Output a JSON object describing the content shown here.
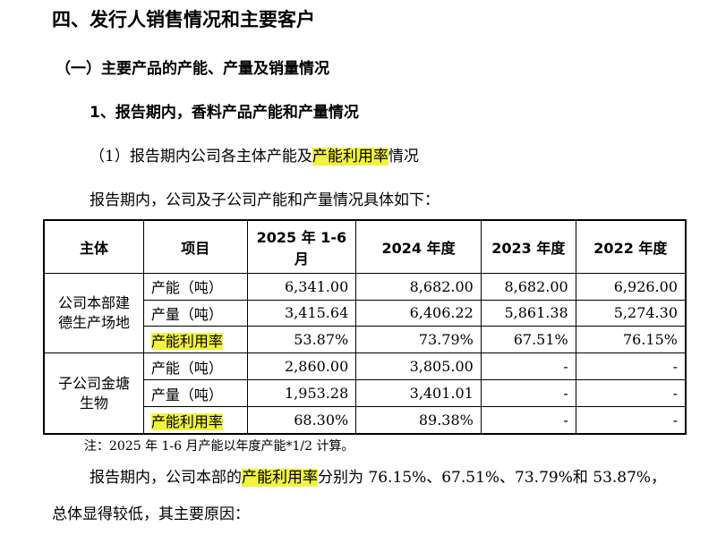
{
  "headings": {
    "h1": "四、发行人销售情况和主要客户",
    "h2": "（一）主要产品的产能、产量及销量情况",
    "h3": "1、报告期内，香料产品产能和产量情况"
  },
  "para1": {
    "pre": "（1）报告期内公司各主体产能及",
    "highlight": "产能利用率",
    "post": "情况"
  },
  "para2": "报告期内，公司及子公司产能和产量情况具体如下：",
  "table": {
    "headers": [
      "主体",
      "项目",
      "2025 年 1-6 月",
      "2024 年度",
      "2023 年度",
      "2022 年度"
    ],
    "groups": [
      {
        "entity": "公司本部建德生产场地",
        "rows": [
          {
            "item": "产能（吨）",
            "values": [
              "6,341.00",
              "8,682.00",
              "8,682.00",
              "6,926.00"
            ]
          },
          {
            "item": "产量（吨）",
            "values": [
              "3,415.64",
              "6,406.22",
              "5,861.38",
              "5,274.30"
            ]
          },
          {
            "item": "产能利用率",
            "values": [
              "53.87%",
              "73.79%",
              "67.51%",
              "76.15%"
            ]
          }
        ]
      },
      {
        "entity": "子公司金塘生物",
        "rows": [
          {
            "item": "产能（吨）",
            "values": [
              "2,860.00",
              "3,805.00",
              "-",
              "-"
            ]
          },
          {
            "item": "产量（吨）",
            "values": [
              "1,953.28",
              "3,401.01",
              "-",
              "-"
            ]
          },
          {
            "item": "产能利用率",
            "values": [
              "68.30%",
              "89.38%",
              "-",
              "-"
            ]
          }
        ]
      }
    ]
  },
  "note": "注：2025 年 1-6 月产能以年度产能*1/2 计算。",
  "para3": {
    "pre": "报告期内，公司本部的",
    "highlight": "产能利用率",
    "post": "分别为 76.15%、67.51%、73.79%和 53.87%，"
  },
  "para4": "总体显得较低，其主要原因：",
  "colors": {
    "highlight": "#f1f33c"
  }
}
